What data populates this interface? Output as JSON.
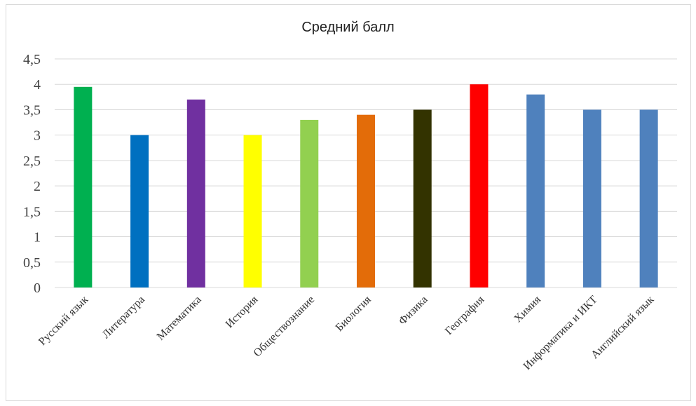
{
  "chart_data": {
    "type": "bar",
    "title": "Средний балл",
    "categories": [
      "Русский язык",
      "Литература",
      "Математика",
      "История",
      "Обществознание",
      "Биология",
      "Физика",
      "География",
      "Химия",
      "Информатика и ИКТ",
      "Английский язык"
    ],
    "values": [
      3.95,
      3.0,
      3.7,
      3.0,
      3.3,
      3.4,
      3.5,
      4.0,
      3.8,
      3.5,
      3.5
    ],
    "colors": [
      "#00b050",
      "#0070c0",
      "#7030a0",
      "#ffff00",
      "#92d050",
      "#e36c09",
      "#333300",
      "#ff0000",
      "#4f81bd",
      "#4f81bd",
      "#4f81bd"
    ],
    "ylim": [
      0,
      4.5
    ],
    "yticks": [
      "0",
      "0,5",
      "1",
      "1,5",
      "2",
      "2,5",
      "3",
      "3,5",
      "4",
      "4,5"
    ],
    "grid": true,
    "legend": "none"
  }
}
